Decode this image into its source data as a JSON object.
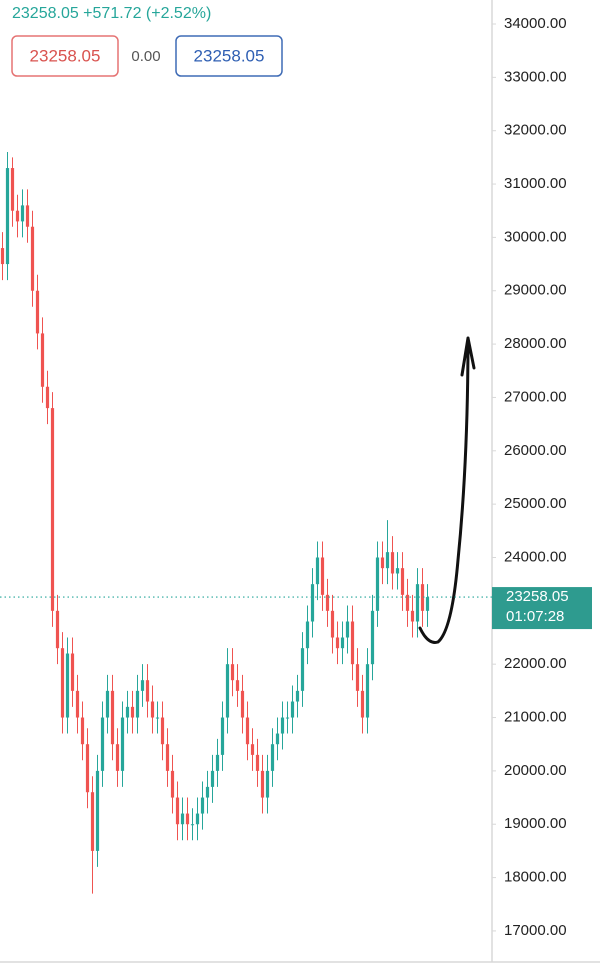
{
  "chart_data": {
    "type": "candlestick",
    "quote_text": "23258.05 +571.72 (+2.52%)",
    "bid": "23258.05",
    "spread": "0.00",
    "ask": "23258.05",
    "last_price": 23258.05,
    "countdown": "01:07:28",
    "up_color": "#26a69a",
    "down_color": "#ef5350",
    "open": [
      29800,
      29500,
      31300,
      30500,
      30300,
      30600,
      30200,
      29000,
      28200,
      27200,
      26800,
      23000,
      22300,
      21000,
      22200,
      21500,
      21000,
      20500,
      19600,
      18500,
      20000,
      21000,
      21500,
      20500,
      20000,
      21000,
      21200,
      21000,
      21500,
      21700,
      21300,
      21000,
      21000,
      20500,
      20000,
      19500,
      19000,
      19200,
      19000,
      19000,
      19200,
      19500,
      19700,
      20000,
      20300,
      21000,
      22000,
      21700,
      21500,
      21000,
      20500,
      20300,
      20000,
      19500,
      20000,
      20500,
      20700,
      21000,
      21000,
      21300,
      21500,
      22300,
      22800,
      23500,
      24000,
      23300,
      23000,
      22500,
      22300,
      22500,
      22800,
      22000,
      21500,
      21000,
      22000,
      23000,
      24000,
      23800,
      24100,
      23700,
      23800,
      23300,
      23000,
      22800,
      23500,
      23000
    ],
    "high": [
      30100,
      31600,
      31500,
      30800,
      30900,
      30900,
      30500,
      29300,
      28500,
      27500,
      27100,
      23300,
      22600,
      22500,
      22500,
      21800,
      21300,
      20800,
      19900,
      20300,
      21300,
      21800,
      21800,
      20800,
      21300,
      21500,
      21500,
      21800,
      22000,
      22000,
      21600,
      21300,
      21300,
      20800,
      20300,
      19800,
      19500,
      19500,
      19300,
      19500,
      19800,
      20000,
      20300,
      20600,
      21300,
      22300,
      22300,
      22000,
      21800,
      21300,
      20800,
      20600,
      20300,
      20300,
      20800,
      21000,
      21300,
      21300,
      21600,
      21800,
      22600,
      23100,
      23800,
      24300,
      24300,
      23600,
      23300,
      22800,
      22800,
      23100,
      23100,
      22300,
      21800,
      22300,
      23300,
      24300,
      24300,
      24700,
      24400,
      24100,
      24100,
      23600,
      23300,
      23800,
      23800,
      23500
    ],
    "low": [
      29200,
      29200,
      30200,
      30000,
      30000,
      29900,
      28700,
      27900,
      26900,
      26500,
      22700,
      22000,
      20700,
      20700,
      21200,
      20700,
      20200,
      19300,
      17700,
      18200,
      19700,
      20700,
      20200,
      19700,
      19700,
      20700,
      20700,
      20700,
      21200,
      21000,
      20700,
      20700,
      20200,
      19700,
      19200,
      18700,
      18700,
      18700,
      18700,
      18700,
      18900,
      19200,
      19400,
      19700,
      20000,
      20700,
      21400,
      21200,
      20700,
      20200,
      20000,
      19700,
      19200,
      19200,
      19700,
      20200,
      20400,
      20700,
      20700,
      21000,
      21200,
      22000,
      22500,
      23200,
      23000,
      22700,
      22200,
      22000,
      22000,
      22200,
      21700,
      21200,
      20700,
      20700,
      21700,
      22700,
      23500,
      23500,
      23400,
      23400,
      23000,
      22700,
      22500,
      22500,
      22700,
      22700
    ],
    "close": [
      29500,
      31300,
      30500,
      30300,
      30600,
      30200,
      29000,
      28200,
      27200,
      26800,
      23000,
      22300,
      21000,
      22200,
      21500,
      21000,
      20500,
      19600,
      18500,
      20000,
      21000,
      21500,
      20500,
      20000,
      21000,
      21200,
      21000,
      21500,
      21700,
      21300,
      21000,
      21000,
      20500,
      20000,
      19500,
      19000,
      19200,
      19000,
      19000,
      19200,
      19500,
      19700,
      20000,
      20300,
      21000,
      22000,
      21700,
      21500,
      21000,
      20500,
      20300,
      20000,
      19500,
      20000,
      20500,
      20700,
      21000,
      21000,
      21300,
      21500,
      22300,
      22800,
      23500,
      24000,
      23300,
      23000,
      22500,
      22300,
      22500,
      22800,
      22000,
      21500,
      21000,
      22000,
      23000,
      24000,
      23800,
      24100,
      23700,
      23800,
      23300,
      23000,
      22800,
      23500,
      23000,
      23258.05
    ],
    "ylim": [
      16455,
      34450
    ],
    "yticks": [
      {
        "value": 34000,
        "label": "34000.00"
      },
      {
        "value": 33000,
        "label": "33000.00"
      },
      {
        "value": 32000,
        "label": "32000.00"
      },
      {
        "value": 31000,
        "label": "31000.00"
      },
      {
        "value": 30000,
        "label": "30000.00"
      },
      {
        "value": 29000,
        "label": "29000.00"
      },
      {
        "value": 28000,
        "label": "28000.00"
      },
      {
        "value": 27000,
        "label": "27000.00"
      },
      {
        "value": 26000,
        "label": "26000.00"
      },
      {
        "value": 25000,
        "label": "25000.00"
      },
      {
        "value": 24000,
        "label": "24000.00"
      },
      {
        "value": 23000,
        "label": "23000.00"
      },
      {
        "value": 22000,
        "label": "22000.00"
      },
      {
        "value": 21000,
        "label": "21000.00"
      },
      {
        "value": 20000,
        "label": "20000.00"
      },
      {
        "value": 19000,
        "label": "19000.00"
      },
      {
        "value": 18000,
        "label": "18000.00"
      },
      {
        "value": 17000,
        "label": "17000.00"
      }
    ]
  }
}
